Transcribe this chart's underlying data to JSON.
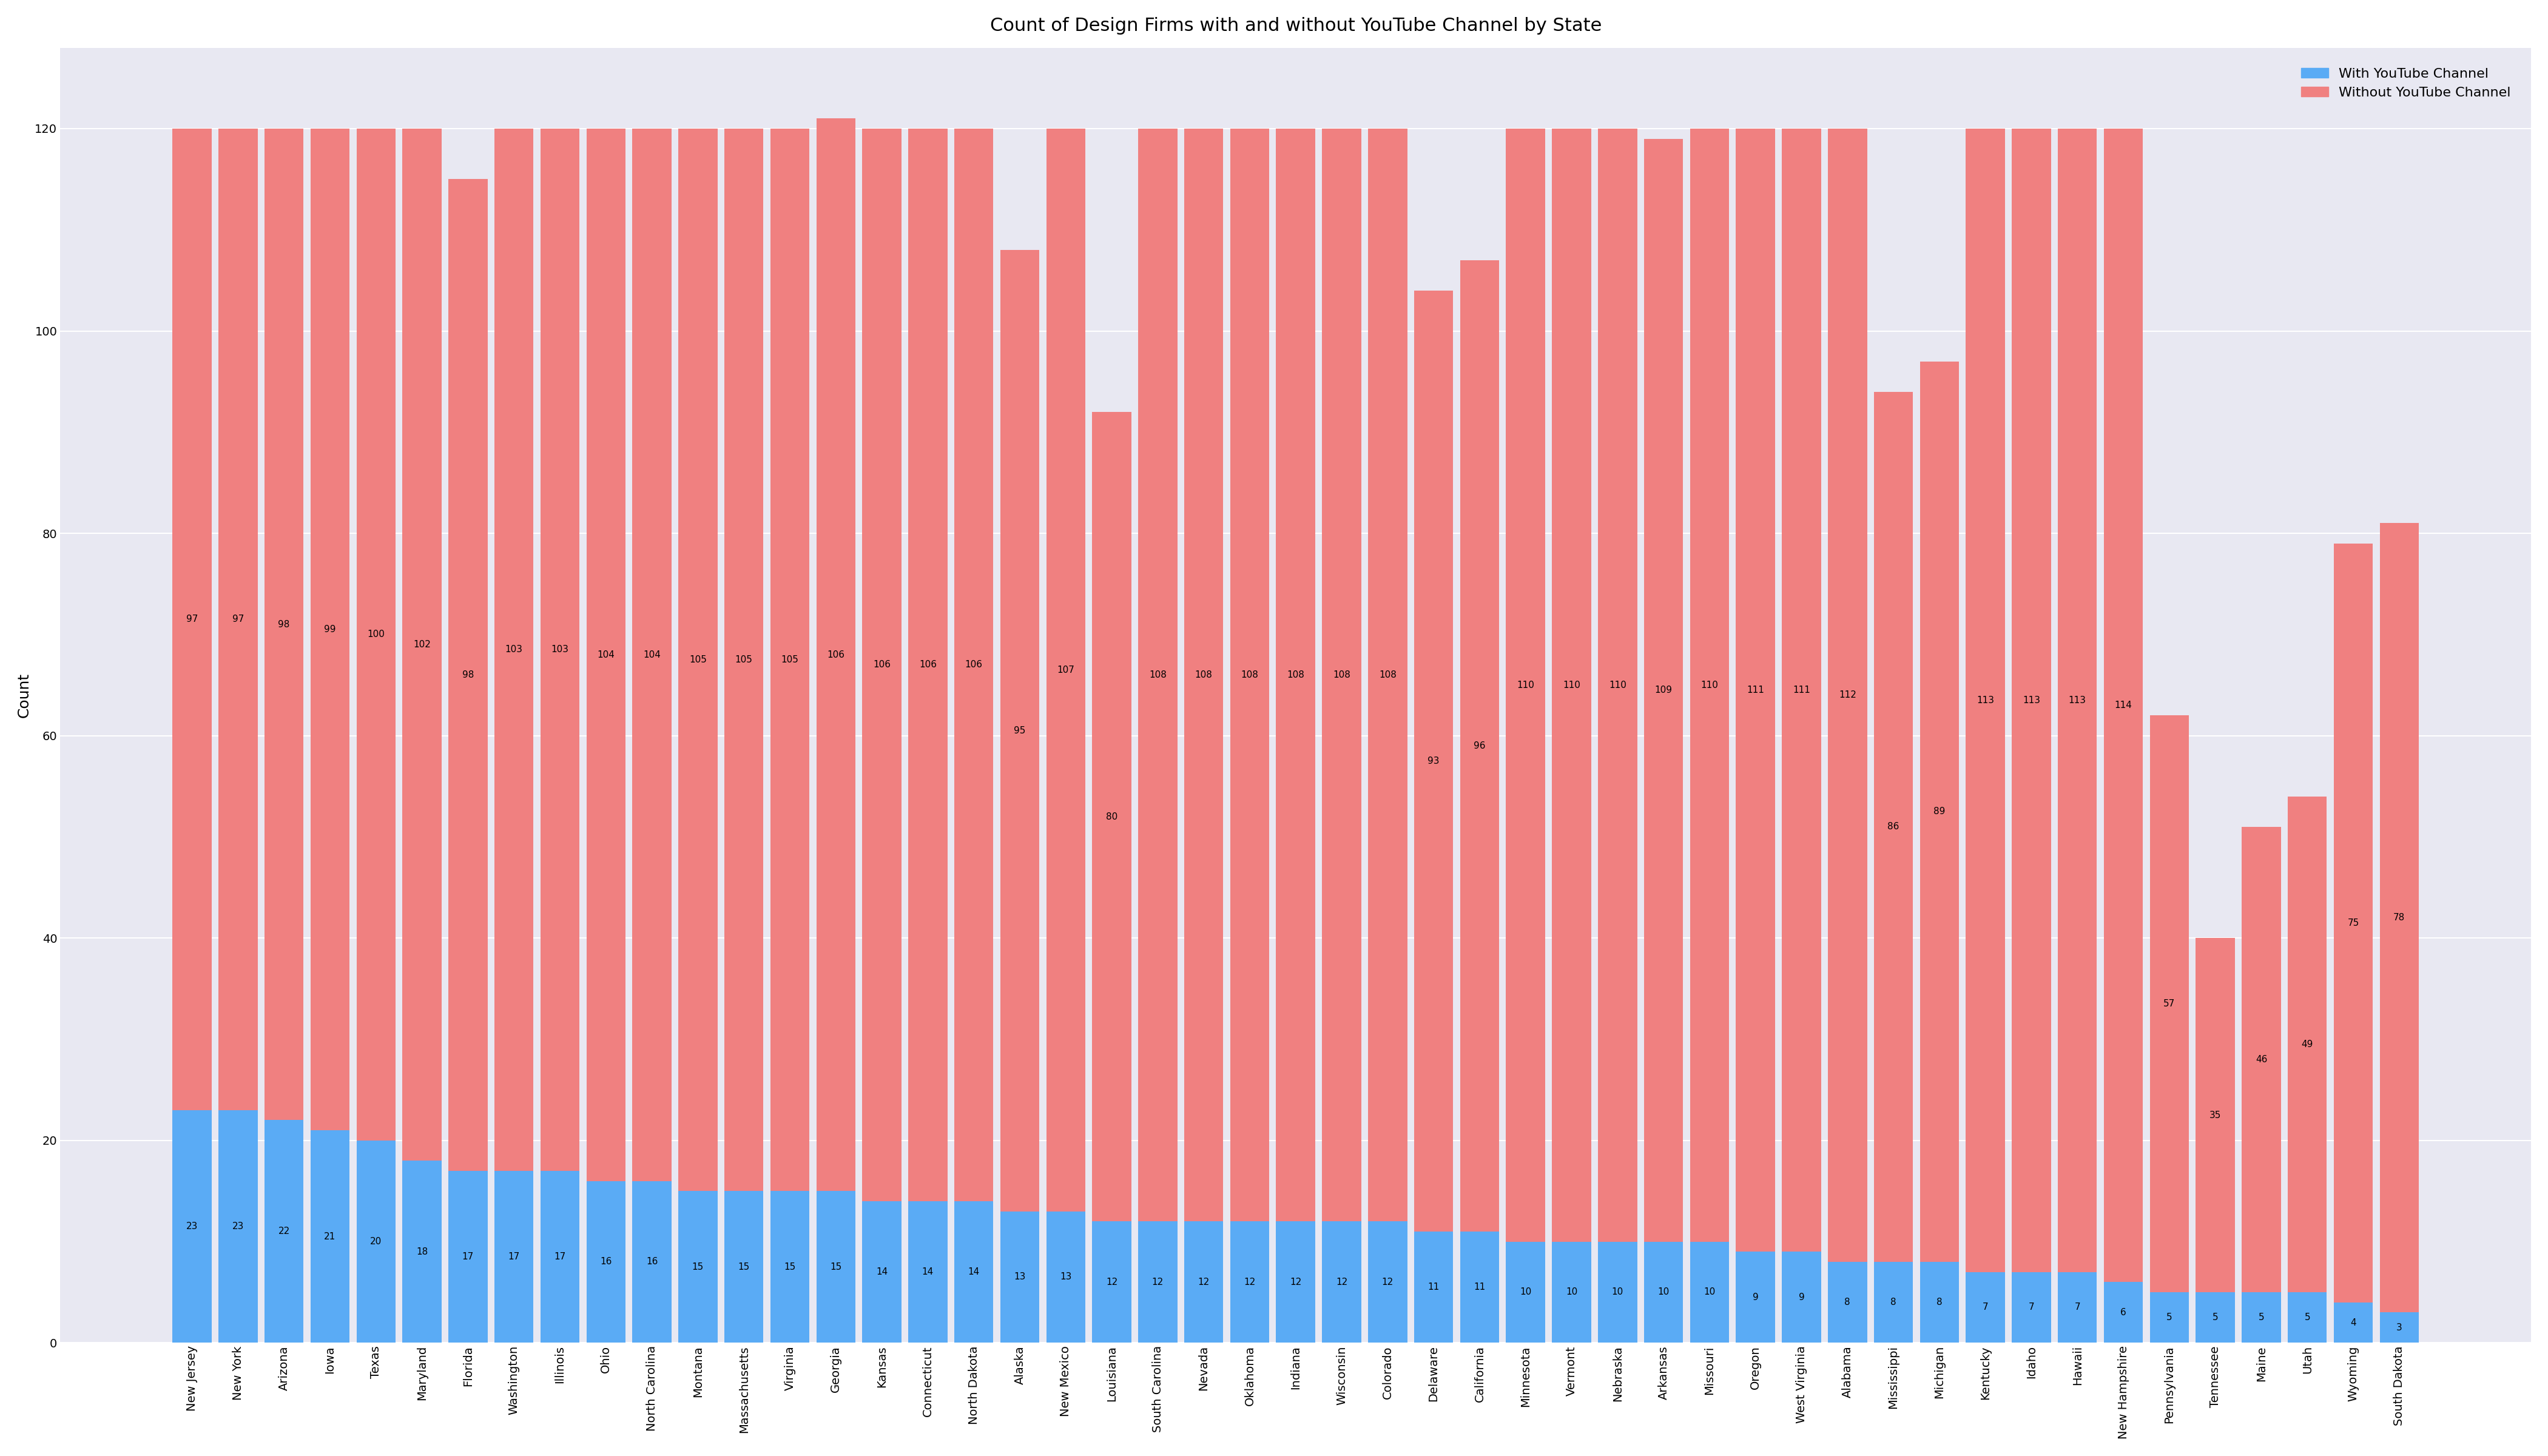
{
  "title": "Count of Design Firms with and without YouTube Channel by State",
  "ylabel": "Count",
  "states": [
    "New Jersey",
    "New York",
    "Arizona",
    "Iowa",
    "Texas",
    "Maryland",
    "Florida",
    "Washington",
    "Illinois",
    "Ohio",
    "North Carolina",
    "Montana",
    "Massachusetts",
    "Virginia",
    "Georgia",
    "Kansas",
    "Connecticut",
    "North Dakota",
    "Alaska",
    "New Mexico",
    "Louisiana",
    "South Carolina",
    "Nevada",
    "Oklahoma",
    "Indiana",
    "Wisconsin",
    "Colorado",
    "Delaware",
    "California",
    "Minnesota",
    "Vermont",
    "Nebraska",
    "Arkansas",
    "Missouri",
    "Oregon",
    "West Virginia",
    "Alabama",
    "Mississippi",
    "Michigan",
    "Kentucky",
    "Idaho",
    "Hawaii",
    "New Hampshire",
    "Pennsylvania",
    "Tennessee",
    "Maine",
    "Utah",
    "Wyoming",
    "South Dakota"
  ],
  "with_yt": [
    23,
    23,
    22,
    21,
    20,
    18,
    17,
    17,
    17,
    16,
    16,
    15,
    15,
    15,
    15,
    14,
    14,
    14,
    13,
    13,
    12,
    12,
    12,
    12,
    12,
    12,
    12,
    11,
    11,
    10,
    10,
    10,
    10,
    10,
    9,
    9,
    8,
    8,
    8,
    7,
    7,
    7,
    6,
    5,
    5,
    5,
    5,
    4,
    3
  ],
  "without_yt": [
    97,
    97,
    98,
    99,
    100,
    102,
    98,
    103,
    103,
    104,
    104,
    105,
    105,
    105,
    106,
    106,
    106,
    106,
    95,
    107,
    80,
    108,
    108,
    108,
    108,
    108,
    108,
    93,
    96,
    110,
    110,
    110,
    109,
    110,
    111,
    111,
    112,
    86,
    89,
    113,
    113,
    113,
    114,
    57,
    35,
    46,
    49,
    75,
    78
  ],
  "with_yt_color": "#5aabf5",
  "without_yt_color": "#f08080",
  "background_color": "#e8e8f2",
  "outer_background": "#ffffff",
  "legend_with_label": "With YouTube Channel",
  "legend_without_label": "Without YouTube Channel",
  "ylim": [
    0,
    128
  ],
  "yticks": [
    0,
    20,
    40,
    60,
    80,
    100,
    120
  ],
  "title_fontsize": 22,
  "tick_fontsize": 14,
  "label_fontsize": 11,
  "ylabel_fontsize": 18,
  "legend_fontsize": 16
}
